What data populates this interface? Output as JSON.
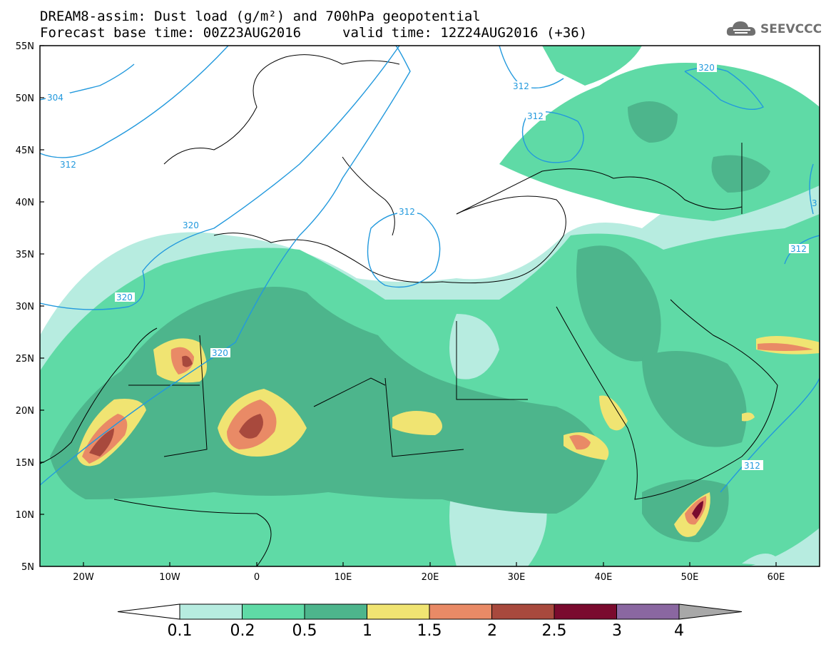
{
  "header": {
    "title": "DREAM8-assim: Dust load (g/m²) and 700hPa geopotential",
    "base_time": "Forecast base time: 00Z23AUG2016",
    "valid_time": "valid time: 12Z24AUG2016 (+36)"
  },
  "logo": {
    "text": "SEEVCCC",
    "icon": "cloud-icon"
  },
  "axes": {
    "lat_labels": [
      "55N",
      "50N",
      "45N",
      "40N",
      "35N",
      "30N",
      "25N",
      "20N",
      "15N",
      "10N",
      "5N"
    ],
    "lon_labels": [
      "20W",
      "10W",
      "0",
      "10E",
      "20E",
      "30E",
      "40E",
      "50E",
      "60E"
    ]
  },
  "contours": {
    "color": "#2299dd",
    "labels": [
      "304",
      "312",
      "320",
      "312",
      "312",
      "312",
      "320",
      "320",
      "320",
      "320",
      "312",
      "312",
      "3",
      "312"
    ]
  },
  "colorbar": {
    "labels": [
      "0.1",
      "0.2",
      "0.5",
      "1",
      "1.5",
      "2",
      "2.5",
      "3",
      "4"
    ],
    "colors": [
      "#ffffff",
      "#b7ece0",
      "#5fdaa6",
      "#4db58c",
      "#f0e472",
      "#e98a66",
      "#a8493d",
      "#7a0a2e",
      "#8a67a1",
      "#a8a8a8"
    ]
  }
}
